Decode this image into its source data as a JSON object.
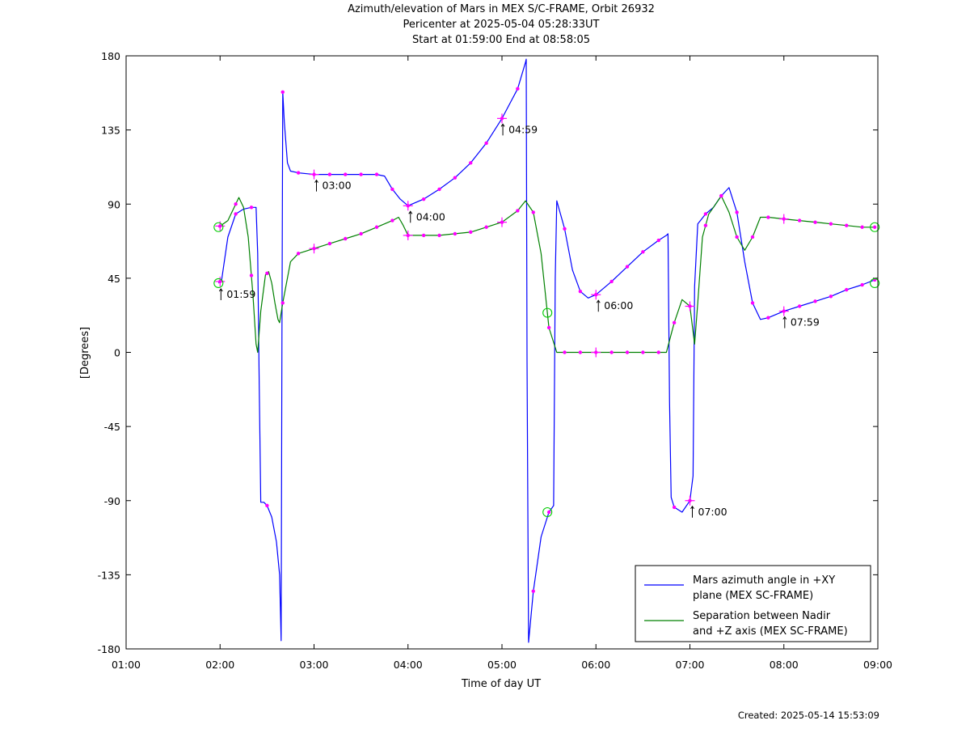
{
  "title_lines": [
    "Azimuth/elevation of Mars in MEX S/C-FRAME,  Orbit 26932",
    "Pericenter at 2025-05-04 05:28:33UT",
    "Start at 01:59:00 End at 08:58:05"
  ],
  "created": "Created: 2025-05-14 15:53:09",
  "chart_data": {
    "type": "line",
    "title": "Azimuth/elevation of Mars in MEX S/C-FRAME,  Orbit 26932",
    "subtitle": "Pericenter at 2025-05-04 05:28:33UT / Start at 01:59:00 End at 08:58:05",
    "xlabel": "Time of day UT",
    "ylabel": "[Degrees]",
    "xlim": [
      "01:00",
      "09:00"
    ],
    "ylim": [
      -180,
      180
    ],
    "x_ticks": [
      "01:00",
      "02:00",
      "03:00",
      "04:00",
      "05:00",
      "06:00",
      "07:00",
      "08:00",
      "09:00"
    ],
    "y_ticks": [
      "180",
      "135",
      "90",
      "45",
      "0",
      "-45",
      "-90",
      "-135",
      "-180"
    ],
    "legend_position": "bottom-right",
    "colors": {
      "azimuth": "#0000ff",
      "separation": "#008000",
      "markers": "#ff00ff",
      "circles": "#00cc00"
    },
    "series": [
      {
        "name": "Mars azimuth angle in +XY plane (MEX SC-FRAME)",
        "legend_lines": [
          "Mars azimuth angle in +XY",
          "plane (MEX SC-FRAME)"
        ],
        "color": "#0000ff",
        "points": [
          [
            "01:59",
            42
          ],
          [
            "02:01",
            44
          ],
          [
            "02:05",
            70
          ],
          [
            "02:10",
            84
          ],
          [
            "02:15",
            87
          ],
          [
            "02:20",
            88
          ],
          [
            "02:22",
            88
          ],
          [
            "02:23",
            88
          ],
          [
            "02:24",
            60
          ],
          [
            "02:25",
            -20
          ],
          [
            "02:26",
            -91
          ],
          [
            "02:28",
            -91
          ],
          [
            "02:30",
            -93
          ],
          [
            "02:33",
            -100
          ],
          [
            "02:36",
            -115
          ],
          [
            "02:38",
            -135
          ],
          [
            "02:39",
            -175
          ],
          [
            "02:39.5",
            10
          ],
          [
            "02:40",
            158
          ],
          [
            "02:41",
            140
          ],
          [
            "02:43",
            115
          ],
          [
            "02:45",
            110
          ],
          [
            "02:50",
            109
          ],
          [
            "03:00",
            108
          ],
          [
            "03:10",
            108
          ],
          [
            "03:20",
            108
          ],
          [
            "03:30",
            108
          ],
          [
            "03:40",
            108
          ],
          [
            "03:45",
            107
          ],
          [
            "03:50",
            99
          ],
          [
            "03:55",
            93
          ],
          [
            "04:00",
            89
          ],
          [
            "04:10",
            93
          ],
          [
            "04:20",
            99
          ],
          [
            "04:30",
            106
          ],
          [
            "04:40",
            115
          ],
          [
            "04:50",
            127
          ],
          [
            "05:00",
            142
          ],
          [
            "05:10",
            160
          ],
          [
            "05:15",
            176
          ],
          [
            "05:15.5",
            178
          ],
          [
            "05:16",
            -5
          ],
          [
            "05:17",
            -176
          ],
          [
            "05:20",
            -145
          ],
          [
            "05:25",
            -112
          ],
          [
            "05:30",
            -97
          ],
          [
            "05:33",
            -93
          ],
          [
            "05:34",
            45
          ],
          [
            "05:35",
            92
          ],
          [
            "05:40",
            75
          ],
          [
            "05:45",
            50
          ],
          [
            "05:50",
            37
          ],
          [
            "05:55",
            33
          ],
          [
            "06:00",
            35
          ],
          [
            "06:10",
            43
          ],
          [
            "06:20",
            52
          ],
          [
            "06:30",
            61
          ],
          [
            "06:40",
            68
          ],
          [
            "06:45",
            71
          ],
          [
            "06:46",
            72
          ],
          [
            "06:47",
            -30
          ],
          [
            "06:48",
            -88
          ],
          [
            "06:50",
            -94
          ],
          [
            "06:55",
            -97
          ],
          [
            "07:00",
            -90
          ],
          [
            "07:02",
            -75
          ],
          [
            "07:03",
            40
          ],
          [
            "07:05",
            78
          ],
          [
            "07:10",
            84
          ],
          [
            "07:15",
            88
          ],
          [
            "07:20",
            95
          ],
          [
            "07:25",
            100
          ],
          [
            "07:30",
            85
          ],
          [
            "07:35",
            55
          ],
          [
            "07:40",
            30
          ],
          [
            "07:45",
            20
          ],
          [
            "07:50",
            21
          ],
          [
            "08:00",
            25
          ],
          [
            "08:10",
            28
          ],
          [
            "08:20",
            31
          ],
          [
            "08:30",
            34
          ],
          [
            "08:40",
            38
          ],
          [
            "08:50",
            41
          ],
          [
            "08:58",
            44
          ]
        ],
        "markers": [
          "02:00",
          "02:10",
          "02:20",
          "02:30",
          "02:40",
          "02:50",
          "03:00",
          "03:10",
          "03:20",
          "03:30",
          "03:40",
          "03:50",
          "04:00",
          "04:10",
          "04:20",
          "04:30",
          "04:40",
          "04:50",
          "05:00",
          "05:10",
          "05:20",
          "05:30",
          "05:40",
          "05:50",
          "06:00",
          "06:10",
          "06:20",
          "06:30",
          "06:40",
          "06:50",
          "07:00",
          "07:10",
          "07:20",
          "07:30",
          "07:40",
          "07:50",
          "08:00",
          "08:10",
          "08:20",
          "08:30",
          "08:40",
          "08:50",
          "08:58"
        ]
      },
      {
        "name": "Separation between Nadir and +Z axis (MEX SC-FRAME)",
        "legend_lines": [
          "Separation between Nadir",
          "and +Z axis (MEX SC-FRAME)"
        ],
        "color": "#008000",
        "points": [
          [
            "01:59",
            76
          ],
          [
            "02:02",
            78
          ],
          [
            "02:05",
            80
          ],
          [
            "02:10",
            90
          ],
          [
            "02:12",
            94
          ],
          [
            "02:15",
            88
          ],
          [
            "02:18",
            70
          ],
          [
            "02:21",
            35
          ],
          [
            "02:23",
            5
          ],
          [
            "02:24",
            0
          ],
          [
            "02:26",
            25
          ],
          [
            "02:29",
            47
          ],
          [
            "02:31",
            49
          ],
          [
            "02:33",
            42
          ],
          [
            "02:35",
            30
          ],
          [
            "02:37",
            20
          ],
          [
            "02:38",
            18
          ],
          [
            "02:40",
            30
          ],
          [
            "02:45",
            55
          ],
          [
            "02:50",
            60
          ],
          [
            "03:00",
            63
          ],
          [
            "03:10",
            66
          ],
          [
            "03:20",
            69
          ],
          [
            "03:30",
            72
          ],
          [
            "03:40",
            76
          ],
          [
            "03:50",
            80
          ],
          [
            "03:54",
            82
          ],
          [
            "03:57",
            77
          ],
          [
            "04:00",
            71
          ],
          [
            "04:10",
            71
          ],
          [
            "04:20",
            71
          ],
          [
            "04:30",
            72
          ],
          [
            "04:40",
            73
          ],
          [
            "04:50",
            76
          ],
          [
            "05:00",
            79
          ],
          [
            "05:10",
            86
          ],
          [
            "05:15",
            92
          ],
          [
            "05:20",
            85
          ],
          [
            "05:25",
            60
          ],
          [
            "05:30",
            15
          ],
          [
            "05:35",
            0
          ],
          [
            "06:00",
            0
          ],
          [
            "06:30",
            0
          ],
          [
            "06:45",
            0
          ],
          [
            "06:50",
            18
          ],
          [
            "06:55",
            32
          ],
          [
            "07:00",
            28
          ],
          [
            "07:03",
            5
          ],
          [
            "07:05",
            30
          ],
          [
            "07:08",
            70
          ],
          [
            "07:12",
            84
          ],
          [
            "07:15",
            88
          ],
          [
            "07:20",
            95
          ],
          [
            "07:25",
            85
          ],
          [
            "07:30",
            70
          ],
          [
            "07:35",
            62
          ],
          [
            "07:40",
            70
          ],
          [
            "07:45",
            82
          ],
          [
            "07:50",
            82
          ],
          [
            "08:00",
            81
          ],
          [
            "08:10",
            80
          ],
          [
            "08:20",
            79
          ],
          [
            "08:30",
            78
          ],
          [
            "08:40",
            77
          ],
          [
            "08:50",
            76
          ],
          [
            "08:58",
            76
          ]
        ],
        "markers": [
          "02:00",
          "02:10",
          "02:20",
          "02:30",
          "02:40",
          "02:50",
          "03:00",
          "03:10",
          "03:20",
          "03:30",
          "03:40",
          "03:50",
          "04:00",
          "04:10",
          "04:20",
          "04:30",
          "04:40",
          "04:50",
          "05:00",
          "05:10",
          "05:20",
          "05:30",
          "05:40",
          "05:50",
          "06:00",
          "06:10",
          "06:20",
          "06:30",
          "06:40",
          "06:50",
          "07:00",
          "07:10",
          "07:20",
          "07:30",
          "07:40",
          "07:50",
          "08:00",
          "08:10",
          "08:20",
          "08:30",
          "08:40",
          "08:50",
          "08:58"
        ]
      }
    ],
    "annotations": [
      {
        "text": "01:59",
        "x": "01:59",
        "y": 42
      },
      {
        "text": "03:00",
        "x": "03:00",
        "y": 108
      },
      {
        "text": "04:00",
        "x": "04:00",
        "y": 89
      },
      {
        "text": "04:59",
        "x": "04:59",
        "y": 142
      },
      {
        "text": "06:00",
        "x": "06:00",
        "y": 35
      },
      {
        "text": "07:00",
        "x": "07:00",
        "y": -90
      },
      {
        "text": "07:59",
        "x": "07:59",
        "y": 25
      }
    ],
    "circles": [
      {
        "x": "01:59",
        "y": 76
      },
      {
        "x": "01:59",
        "y": 42
      },
      {
        "x": "05:29",
        "y": 24
      },
      {
        "x": "05:29",
        "y": -97
      },
      {
        "x": "08:58",
        "y": 76
      },
      {
        "x": "08:58",
        "y": 42
      }
    ]
  }
}
